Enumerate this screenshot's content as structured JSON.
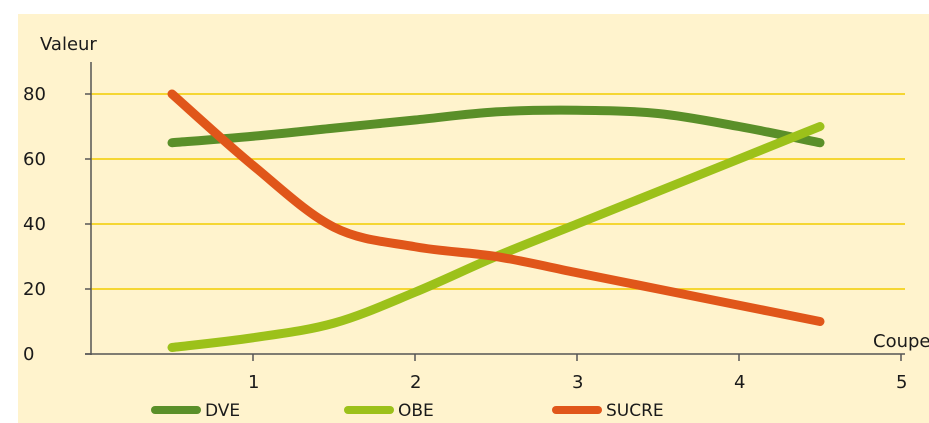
{
  "chart_data": {
    "type": "line",
    "xlabel": "Coupe",
    "ylabel": "Valeur",
    "xlim": [
      0,
      5
    ],
    "ylim": [
      0,
      90
    ],
    "x_ticks": [
      1,
      2,
      3,
      4,
      5
    ],
    "y_ticks": [
      0,
      20,
      40,
      60,
      80
    ],
    "grid": "horizontal",
    "legend_position": "bottom",
    "series": [
      {
        "name": "DVE",
        "color": "#5a8f29",
        "x": [
          0.5,
          1.0,
          1.5,
          2.0,
          2.5,
          3.0,
          3.5,
          4.0,
          4.5
        ],
        "values": [
          65,
          67,
          69.5,
          72,
          74.5,
          75,
          74,
          70,
          65
        ]
      },
      {
        "name": "OBE",
        "color": "#9cc11a",
        "x": [
          0.5,
          1.0,
          1.5,
          2.0,
          2.5,
          3.0,
          3.5,
          4.0,
          4.5
        ],
        "values": [
          2,
          5,
          9.5,
          19,
          30,
          40,
          50,
          60,
          70
        ]
      },
      {
        "name": "SUCRE",
        "color": "#e0561a",
        "x": [
          0.5,
          1.0,
          1.5,
          2.0,
          2.5,
          3.0,
          3.5,
          4.0,
          4.5
        ],
        "values": [
          80,
          58,
          39,
          33,
          30,
          25,
          20,
          15,
          10
        ]
      }
    ]
  }
}
